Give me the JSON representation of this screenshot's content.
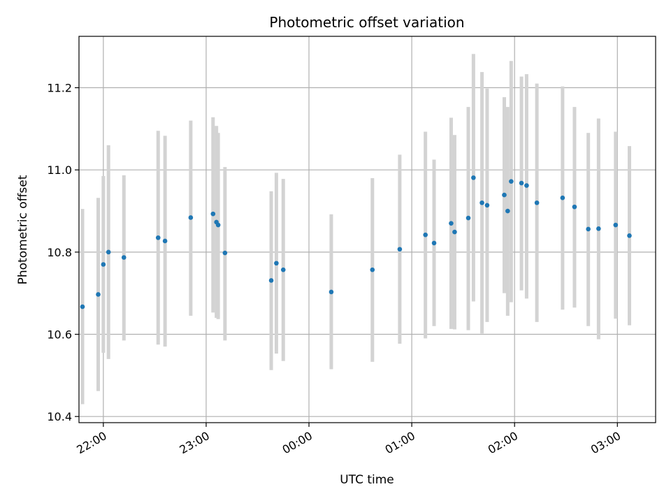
{
  "chart_data": {
    "type": "scatter",
    "title": "Photometric offset variation",
    "xlabel": "UTC time",
    "ylabel": "Photometric offset",
    "x_unit": "UTC time (hours after midnight; negative = previous day)",
    "xlim": [
      -2.237,
      3.372
    ],
    "ylim": [
      10.385,
      11.325
    ],
    "grid": true,
    "x_ticks": [
      {
        "value": -2,
        "label": "22:00"
      },
      {
        "value": -1,
        "label": "23:00"
      },
      {
        "value": 0,
        "label": "00:00"
      },
      {
        "value": 1,
        "label": "01:00"
      },
      {
        "value": 2,
        "label": "02:00"
      },
      {
        "value": 3,
        "label": "03:00"
      }
    ],
    "y_ticks": [
      {
        "value": 10.4,
        "label": "10.4"
      },
      {
        "value": 10.6,
        "label": "10.6"
      },
      {
        "value": 10.8,
        "label": "10.8"
      },
      {
        "value": 11.0,
        "label": "11.0"
      },
      {
        "value": 11.2,
        "label": "11.2"
      }
    ],
    "colors": {
      "point": "#1f77b4",
      "errorbar": "#d3d3d3",
      "grid": "#b0b0b0",
      "axes": "#000000"
    },
    "points": [
      {
        "x": -2.203,
        "y": 10.667,
        "ylow": 10.43,
        "yhigh": 10.905
      },
      {
        "x": -2.05,
        "y": 10.697,
        "ylow": 10.462,
        "yhigh": 10.932
      },
      {
        "x": -2.0,
        "y": 10.77,
        "ylow": 10.555,
        "yhigh": 10.985
      },
      {
        "x": -1.95,
        "y": 10.8,
        "ylow": 10.54,
        "yhigh": 11.06
      },
      {
        "x": -1.8,
        "y": 10.787,
        "ylow": 10.585,
        "yhigh": 10.987
      },
      {
        "x": -1.467,
        "y": 10.835,
        "ylow": 10.575,
        "yhigh": 11.095
      },
      {
        "x": -1.4,
        "y": 10.827,
        "ylow": 10.57,
        "yhigh": 11.083
      },
      {
        "x": -1.15,
        "y": 10.884,
        "ylow": 10.645,
        "yhigh": 11.12
      },
      {
        "x": -0.933,
        "y": 10.893,
        "ylow": 10.653,
        "yhigh": 11.128
      },
      {
        "x": -0.9,
        "y": 10.873,
        "ylow": 10.64,
        "yhigh": 11.107
      },
      {
        "x": -0.883,
        "y": 10.866,
        "ylow": 10.637,
        "yhigh": 11.09
      },
      {
        "x": -0.817,
        "y": 10.798,
        "ylow": 10.585,
        "yhigh": 11.007
      },
      {
        "x": -0.367,
        "y": 10.731,
        "ylow": 10.513,
        "yhigh": 10.948
      },
      {
        "x": -0.317,
        "y": 10.773,
        "ylow": 10.553,
        "yhigh": 10.993
      },
      {
        "x": -0.25,
        "y": 10.757,
        "ylow": 10.535,
        "yhigh": 10.978
      },
      {
        "x": 0.217,
        "y": 10.703,
        "ylow": 10.515,
        "yhigh": 10.892
      },
      {
        "x": 0.617,
        "y": 10.757,
        "ylow": 10.533,
        "yhigh": 10.98
      },
      {
        "x": 0.883,
        "y": 10.807,
        "ylow": 10.577,
        "yhigh": 11.037
      },
      {
        "x": 1.133,
        "y": 10.842,
        "ylow": 10.59,
        "yhigh": 11.093
      },
      {
        "x": 1.217,
        "y": 10.822,
        "ylow": 10.62,
        "yhigh": 11.025
      },
      {
        "x": 1.383,
        "y": 10.87,
        "ylow": 10.613,
        "yhigh": 11.127
      },
      {
        "x": 1.417,
        "y": 10.849,
        "ylow": 10.612,
        "yhigh": 11.085
      },
      {
        "x": 1.55,
        "y": 10.883,
        "ylow": 10.61,
        "yhigh": 11.153
      },
      {
        "x": 1.6,
        "y": 10.981,
        "ylow": 10.68,
        "yhigh": 11.282
      },
      {
        "x": 1.683,
        "y": 10.92,
        "ylow": 10.602,
        "yhigh": 11.238
      },
      {
        "x": 1.733,
        "y": 10.914,
        "ylow": 10.63,
        "yhigh": 11.198
      },
      {
        "x": 1.9,
        "y": 10.939,
        "ylow": 10.7,
        "yhigh": 11.177
      },
      {
        "x": 1.933,
        "y": 10.9,
        "ylow": 10.645,
        "yhigh": 11.153
      },
      {
        "x": 1.967,
        "y": 10.972,
        "ylow": 10.678,
        "yhigh": 11.265
      },
      {
        "x": 2.067,
        "y": 10.968,
        "ylow": 10.707,
        "yhigh": 11.227
      },
      {
        "x": 2.117,
        "y": 10.962,
        "ylow": 10.687,
        "yhigh": 11.233
      },
      {
        "x": 2.217,
        "y": 10.92,
        "ylow": 10.63,
        "yhigh": 11.21
      },
      {
        "x": 2.467,
        "y": 10.932,
        "ylow": 10.66,
        "yhigh": 11.203
      },
      {
        "x": 2.583,
        "y": 10.91,
        "ylow": 10.665,
        "yhigh": 11.153
      },
      {
        "x": 2.717,
        "y": 10.856,
        "ylow": 10.62,
        "yhigh": 11.09
      },
      {
        "x": 2.817,
        "y": 10.857,
        "ylow": 10.588,
        "yhigh": 11.125
      },
      {
        "x": 2.983,
        "y": 10.866,
        "ylow": 10.638,
        "yhigh": 11.093
      },
      {
        "x": 3.117,
        "y": 10.84,
        "ylow": 10.622,
        "yhigh": 11.058
      }
    ]
  }
}
